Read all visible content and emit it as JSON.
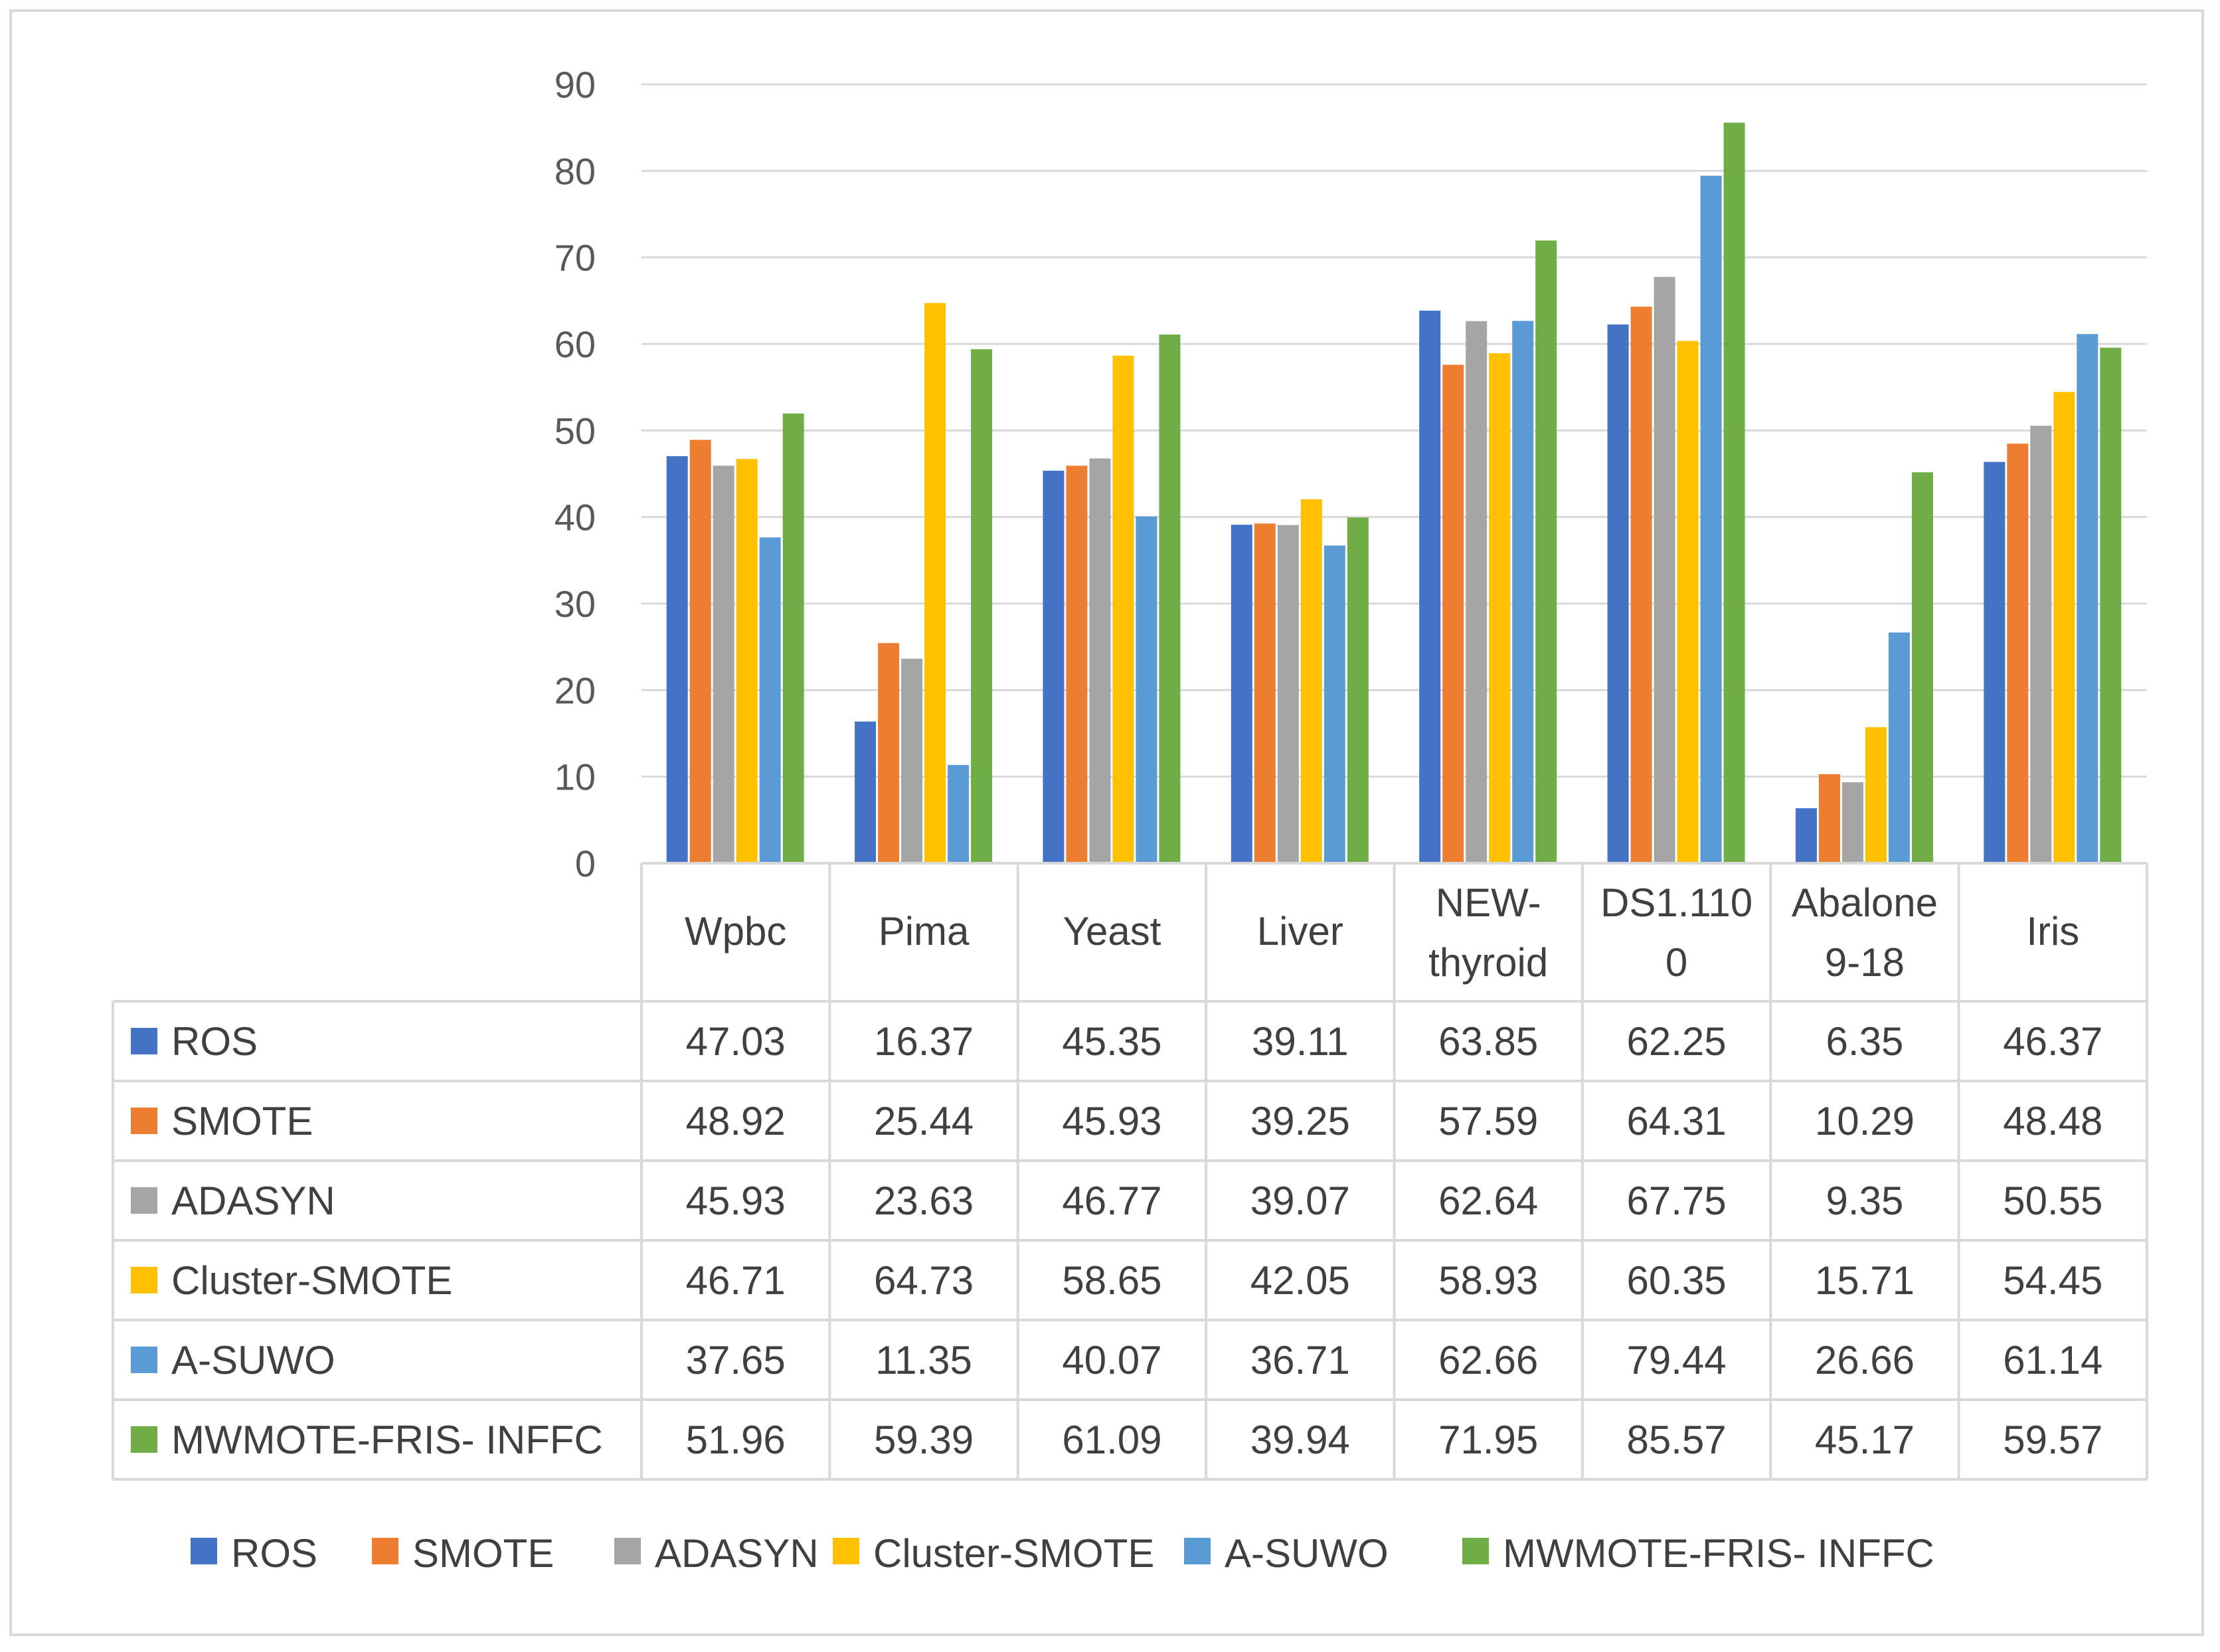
{
  "chart_data": {
    "type": "bar",
    "title": "",
    "xlabel": "",
    "ylabel": "",
    "ylim": [
      0,
      90
    ],
    "yticks": [
      0,
      10,
      20,
      30,
      40,
      50,
      60,
      70,
      80,
      90
    ],
    "grid": true,
    "legend_position": "bottom",
    "categories": [
      [
        "Wpbc"
      ],
      [
        "Pima"
      ],
      [
        "Yeast"
      ],
      [
        "Liver"
      ],
      [
        "NEW-",
        "thyroid"
      ],
      [
        "DS1.110",
        "0"
      ],
      [
        "Abalone",
        "9-18"
      ],
      [
        "Iris"
      ]
    ],
    "series": [
      {
        "name": "ROS",
        "color": "#4472c4",
        "values": [
          47.03,
          16.37,
          45.35,
          39.11,
          63.85,
          62.25,
          6.35,
          46.37
        ]
      },
      {
        "name": "SMOTE",
        "color": "#ed7d31",
        "values": [
          48.92,
          25.44,
          45.93,
          39.25,
          57.59,
          64.31,
          10.29,
          48.48
        ]
      },
      {
        "name": "ADASYN",
        "color": "#a5a5a5",
        "values": [
          45.93,
          23.63,
          46.77,
          39.07,
          62.64,
          67.75,
          9.35,
          50.55
        ]
      },
      {
        "name": "Cluster-SMOTE",
        "color": "#ffc000",
        "values": [
          46.71,
          64.73,
          58.65,
          42.05,
          58.93,
          60.35,
          15.71,
          54.45
        ]
      },
      {
        "name": "A-SUWO",
        "color": "#5b9bd5",
        "values": [
          37.65,
          11.35,
          40.07,
          36.71,
          62.66,
          79.44,
          26.66,
          61.14
        ]
      },
      {
        "name": "MWMOTE-FRIS- INFFC",
        "color": "#70ad47",
        "values": [
          51.96,
          59.39,
          61.09,
          39.94,
          71.95,
          85.57,
          45.17,
          59.57
        ]
      }
    ],
    "table_values": [
      [
        "47.03",
        "16.37",
        "45.35",
        "39.11",
        "63.85",
        "62.25",
        "6.35",
        "46.37"
      ],
      [
        "48.92",
        "25.44",
        "45.93",
        "39.25",
        "57.59",
        "64.31",
        "10.29",
        "48.48"
      ],
      [
        "45.93",
        "23.63",
        "46.77",
        "39.07",
        "62.64",
        "67.75",
        "9.35",
        "50.55"
      ],
      [
        "46.71",
        "64.73",
        "58.65",
        "42.05",
        "58.93",
        "60.35",
        "15.71",
        "54.45"
      ],
      [
        "37.65",
        "11.35",
        "40.07",
        "36.71",
        "62.66",
        "79.44",
        "26.66",
        "61.14"
      ],
      [
        "51.96",
        "59.39",
        "61.09",
        "39.94",
        "71.95",
        "85.57",
        "45.17",
        "59.57"
      ]
    ]
  }
}
